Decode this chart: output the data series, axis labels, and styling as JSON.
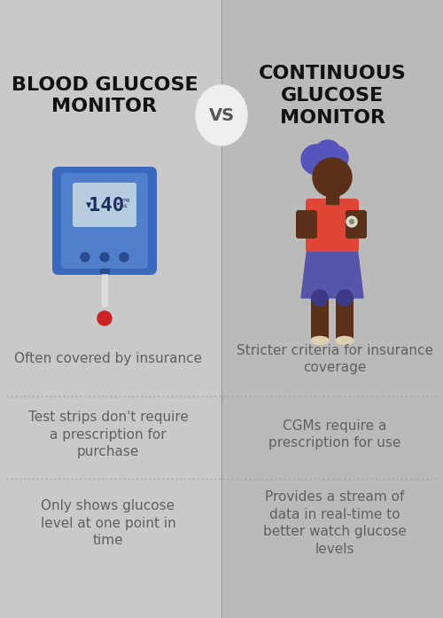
{
  "bg_left": "#c9c9c9",
  "bg_right": "#bababa",
  "title_left": "BLOOD GLUCOSE\nMONITOR",
  "title_right": "CONTINUOUS\nGLUCOSE\nMONITOR",
  "vs_text": "VS",
  "vs_circle_color": "#eeeeee",
  "title_color": "#111111",
  "text_color": "#606060",
  "left_points": [
    "Often covered by insurance",
    "Test strips don't require\na prescription for\npurchase",
    "Only shows glucose\nlevel at one point in\ntime"
  ],
  "right_points": [
    "Stricter criteria for insurance\ncoverage",
    "CGMs require a\nprescription for use",
    "Provides a stream of\ndata in real-time to\nbetter watch glucose\nlevels"
  ],
  "dot_color": "#aaaaaa",
  "title_fontsize": 16,
  "body_fontsize": 11,
  "vs_fontsize": 14,
  "fig_width": 5.0,
  "fig_height": 6.97,
  "dpi": 100
}
